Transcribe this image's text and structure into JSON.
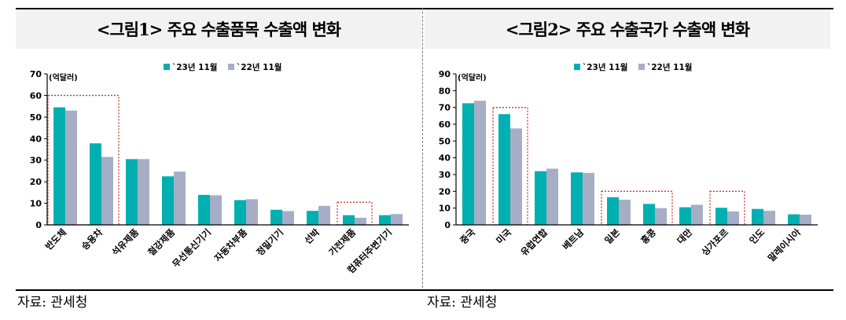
{
  "panels": [
    {
      "title": "<그림1> 주요 수출품목 수출액 변화",
      "source": "자료: 관세청"
    },
    {
      "title": "<그림2> 주요 수출국가 수출액 변화",
      "source": "자료: 관세청"
    }
  ],
  "colors": {
    "series_2023": "#00b0b0",
    "series_2022": "#a6aec6",
    "highlight_box": "#d63030"
  },
  "chart_data": [
    {
      "type": "bar",
      "title": "<그림1> 주요 수출품목 수출액 변화",
      "unit_label": "(억달러)",
      "categories": [
        "반도체",
        "승용차",
        "석유제품",
        "철강제품",
        "무선통신기기",
        "자동차부품",
        "정밀기기",
        "선박",
        "가전제품",
        "컴퓨터주변기기"
      ],
      "series": [
        {
          "name": "`23년 11월",
          "values": [
            54.5,
            37.8,
            30.5,
            22.5,
            13.9,
            11.5,
            7.0,
            6.5,
            4.5,
            4.5
          ]
        },
        {
          "name": "`22년 11월",
          "values": [
            53.0,
            31.5,
            30.5,
            24.7,
            13.7,
            11.9,
            6.4,
            8.8,
            3.3,
            5.0
          ]
        }
      ],
      "ylim": [
        0,
        70
      ],
      "yticks": [
        0,
        10,
        20,
        30,
        40,
        50,
        60,
        70
      ],
      "legend": "top",
      "highlight_groups": [
        [
          0,
          1
        ],
        [
          8,
          8
        ]
      ]
    },
    {
      "type": "bar",
      "title": "<그림2> 주요 수출국가 수출액 변화",
      "unit_label": "(억달러)",
      "categories": [
        "중국",
        "미국",
        "유럽연합",
        "베트남",
        "일본",
        "홍콩",
        "대만",
        "싱가포르",
        "인도",
        "말레이시아"
      ],
      "series": [
        {
          "name": "`23년 11월",
          "values": [
            72.5,
            66.0,
            32.0,
            31.3,
            16.5,
            12.5,
            10.5,
            10.2,
            9.5,
            6.3
          ]
        },
        {
          "name": "`22년 11월",
          "values": [
            74.0,
            57.5,
            33.5,
            31.0,
            15.0,
            10.0,
            12.0,
            8.0,
            8.4,
            6.1
          ]
        }
      ],
      "ylim": [
        0,
        90
      ],
      "yticks": [
        0,
        10,
        20,
        30,
        40,
        50,
        60,
        70,
        80,
        90
      ],
      "legend": "top",
      "highlight_groups": [
        [
          1,
          1
        ],
        [
          4,
          5
        ],
        [
          7,
          7
        ]
      ]
    }
  ]
}
